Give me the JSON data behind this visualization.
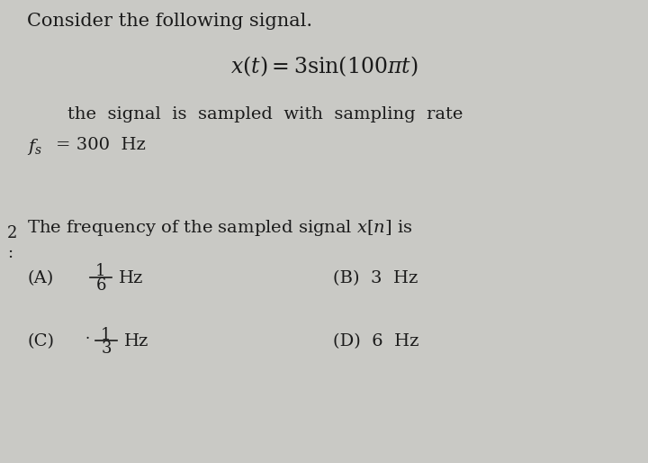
{
  "bg_color": "#c9c9c5",
  "text_color": "#1a1a1a",
  "title_line": "Consider the following signal.",
  "signal_eq": "$x(t) = 3\\sin(100\\pi t)$",
  "sampling_line1": "the  signal  is  sampled  with  sampling  rate",
  "sampling_line2_a": "$f_s$",
  "sampling_line2_b": "= 300  Hz",
  "question_line": "The frequency of the sampled signal $x[n]$ is",
  "optA_label": "(A)",
  "optA_frac_num": "1",
  "optA_frac_den": "6",
  "optA_unit": "Hz",
  "optB_label": "(B)  3  Hz",
  "optC_label": "(C)",
  "optC_dot": "·",
  "optC_frac_num": "1",
  "optC_frac_den": "3",
  "optC_unit": "Hz",
  "optD_label": "(D)  6  Hz",
  "left_num": "2",
  "left_colon": ":"
}
